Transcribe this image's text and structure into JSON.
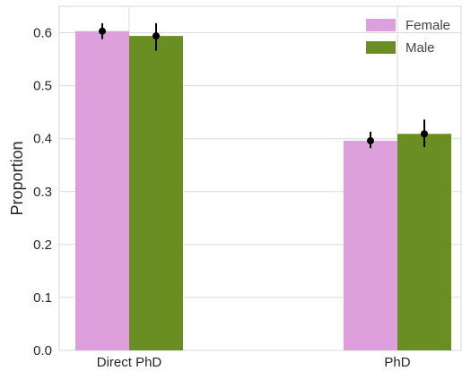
{
  "chart_data": {
    "type": "bar",
    "title": "",
    "xlabel": "",
    "ylabel": "Proportion",
    "categories": [
      "Direct PhD",
      "PhD"
    ],
    "series": [
      {
        "name": "Female",
        "color": "#dda0dd",
        "values": [
          0.603,
          0.396
        ],
        "err_low": [
          0.015,
          0.014
        ],
        "err_high": [
          0.015,
          0.017
        ]
      },
      {
        "name": "Male",
        "color": "#6b8e23",
        "values": [
          0.594,
          0.409
        ],
        "err_low": [
          0.028,
          0.025
        ],
        "err_high": [
          0.024,
          0.027
        ]
      }
    ],
    "ylim": [
      0,
      0.65
    ],
    "yticks": [
      "0.0",
      "0.1",
      "0.2",
      "0.3",
      "0.4",
      "0.5",
      "0.6"
    ],
    "grid": true,
    "legend_position": "top-right"
  }
}
